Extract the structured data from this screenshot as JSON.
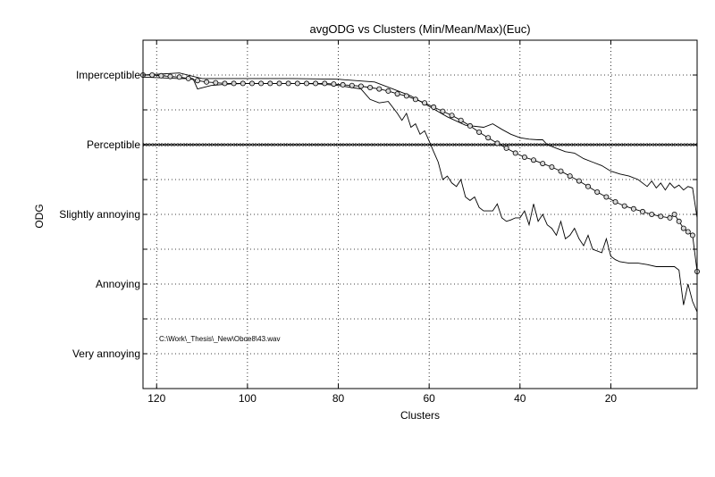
{
  "chart_data": {
    "type": "line",
    "title": "avgODG vs Clusters (Min/Mean/Max)(Euc)",
    "xlabel": "Clusters",
    "ylabel": "ODG",
    "xlim": [
      123,
      1
    ],
    "ylim": [
      -4.5,
      0.5
    ],
    "x_reversed": true,
    "grid": true,
    "xticks": [
      120,
      100,
      80,
      60,
      40,
      20
    ],
    "yticks": [
      {
        "value": 0,
        "label": "Imperceptible"
      },
      {
        "value": -1,
        "label": "Perceptible"
      },
      {
        "value": -2,
        "label": "Slightly annoying"
      },
      {
        "value": -3,
        "label": "Annoying"
      },
      {
        "value": -4,
        "label": "Very annoying"
      }
    ],
    "annotation": "C:\\Work\\_Thesis\\_New\\Oboe8\\43.wav",
    "threshold": {
      "y": -1,
      "style": "x-marker line"
    },
    "series": [
      {
        "role": "max",
        "points": [
          [
            123,
            0
          ],
          [
            115,
            0.03
          ],
          [
            110,
            -0.05
          ],
          [
            100,
            -0.05
          ],
          [
            90,
            -0.05
          ],
          [
            80,
            -0.06
          ],
          [
            72,
            -0.1
          ],
          [
            68,
            -0.2
          ],
          [
            64,
            -0.3
          ],
          [
            60,
            -0.45
          ],
          [
            56,
            -0.6
          ],
          [
            52,
            -0.72
          ],
          [
            48,
            -0.75
          ],
          [
            46,
            -0.7
          ],
          [
            44,
            -0.78
          ],
          [
            42,
            -0.85
          ],
          [
            40,
            -0.9
          ],
          [
            38,
            -0.92
          ],
          [
            36,
            -0.93
          ],
          [
            35,
            -0.93
          ],
          [
            34,
            -1.0
          ],
          [
            32,
            -1.05
          ],
          [
            30,
            -1.1
          ],
          [
            28,
            -1.12
          ],
          [
            26,
            -1.2
          ],
          [
            24,
            -1.25
          ],
          [
            22,
            -1.3
          ],
          [
            20,
            -1.38
          ],
          [
            18,
            -1.42
          ],
          [
            16,
            -1.45
          ],
          [
            14,
            -1.5
          ],
          [
            12,
            -1.6
          ],
          [
            11,
            -1.52
          ],
          [
            10,
            -1.62
          ],
          [
            9,
            -1.55
          ],
          [
            8,
            -1.65
          ],
          [
            7,
            -1.55
          ],
          [
            6,
            -1.62
          ],
          [
            5,
            -1.58
          ],
          [
            4,
            -1.65
          ],
          [
            3,
            -1.6
          ],
          [
            2,
            -1.62
          ],
          [
            1,
            -2.05
          ]
        ]
      },
      {
        "role": "min",
        "points": [
          [
            123,
            -0.03
          ],
          [
            115,
            -0.05
          ],
          [
            112,
            -0.05
          ],
          [
            111,
            -0.2
          ],
          [
            108,
            -0.15
          ],
          [
            104,
            -0.13
          ],
          [
            100,
            -0.12
          ],
          [
            96,
            -0.12
          ],
          [
            92,
            -0.12
          ],
          [
            88,
            -0.12
          ],
          [
            84,
            -0.13
          ],
          [
            80,
            -0.15
          ],
          [
            77,
            -0.18
          ],
          [
            75,
            -0.2
          ],
          [
            73,
            -0.35
          ],
          [
            71,
            -0.4
          ],
          [
            69,
            -0.38
          ],
          [
            67,
            -0.55
          ],
          [
            66,
            -0.65
          ],
          [
            65,
            -0.55
          ],
          [
            64,
            -0.75
          ],
          [
            63,
            -0.7
          ],
          [
            62,
            -0.85
          ],
          [
            61,
            -0.8
          ],
          [
            60,
            -0.95
          ],
          [
            59,
            -1.1
          ],
          [
            58,
            -1.25
          ],
          [
            57,
            -1.5
          ],
          [
            56,
            -1.45
          ],
          [
            55,
            -1.55
          ],
          [
            54,
            -1.6
          ],
          [
            53,
            -1.5
          ],
          [
            52,
            -1.75
          ],
          [
            51,
            -1.8
          ],
          [
            50,
            -1.75
          ],
          [
            49,
            -1.9
          ],
          [
            48,
            -1.95
          ],
          [
            46,
            -1.95
          ],
          [
            45,
            -1.85
          ],
          [
            44,
            -2.05
          ],
          [
            43,
            -2.1
          ],
          [
            42,
            -2.08
          ],
          [
            41,
            -2.05
          ],
          [
            40,
            -2.05
          ],
          [
            39,
            -1.95
          ],
          [
            38,
            -2.15
          ],
          [
            37,
            -1.85
          ],
          [
            36,
            -2.1
          ],
          [
            35,
            -2.0
          ],
          [
            34,
            -2.15
          ],
          [
            33,
            -2.2
          ],
          [
            32,
            -2.3
          ],
          [
            31,
            -2.1
          ],
          [
            30,
            -2.35
          ],
          [
            29,
            -2.3
          ],
          [
            28,
            -2.2
          ],
          [
            27,
            -2.35
          ],
          [
            26,
            -2.45
          ],
          [
            25,
            -2.3
          ],
          [
            24,
            -2.5
          ],
          [
            22,
            -2.55
          ],
          [
            21,
            -2.35
          ],
          [
            20,
            -2.6
          ],
          [
            19,
            -2.65
          ],
          [
            18,
            -2.68
          ],
          [
            16,
            -2.7
          ],
          [
            14,
            -2.7
          ],
          [
            12,
            -2.72
          ],
          [
            10,
            -2.75
          ],
          [
            8,
            -2.75
          ],
          [
            6,
            -2.75
          ],
          [
            5,
            -2.8
          ],
          [
            4,
            -3.3
          ],
          [
            3,
            -3.0
          ],
          [
            2,
            -3.25
          ],
          [
            1,
            -3.4
          ]
        ]
      },
      {
        "role": "mean",
        "markers": "circle",
        "points": [
          [
            123,
            0
          ],
          [
            121,
            0
          ],
          [
            119,
            -0.01
          ],
          [
            117,
            -0.02
          ],
          [
            115,
            -0.03
          ],
          [
            113,
            -0.05
          ],
          [
            111,
            -0.08
          ],
          [
            109,
            -0.1
          ],
          [
            107,
            -0.11
          ],
          [
            105,
            -0.12
          ],
          [
            103,
            -0.12
          ],
          [
            101,
            -0.12
          ],
          [
            99,
            -0.12
          ],
          [
            97,
            -0.12
          ],
          [
            95,
            -0.12
          ],
          [
            93,
            -0.12
          ],
          [
            91,
            -0.12
          ],
          [
            89,
            -0.12
          ],
          [
            87,
            -0.12
          ],
          [
            85,
            -0.12
          ],
          [
            83,
            -0.12
          ],
          [
            81,
            -0.13
          ],
          [
            79,
            -0.14
          ],
          [
            77,
            -0.15
          ],
          [
            75,
            -0.16
          ],
          [
            73,
            -0.18
          ],
          [
            71,
            -0.2
          ],
          [
            69,
            -0.23
          ],
          [
            67,
            -0.27
          ],
          [
            65,
            -0.3
          ],
          [
            63,
            -0.35
          ],
          [
            61,
            -0.4
          ],
          [
            59,
            -0.46
          ],
          [
            57,
            -0.52
          ],
          [
            55,
            -0.58
          ],
          [
            53,
            -0.65
          ],
          [
            51,
            -0.73
          ],
          [
            49,
            -0.82
          ],
          [
            47,
            -0.9
          ],
          [
            45,
            -0.98
          ],
          [
            43,
            -1.05
          ],
          [
            41,
            -1.12
          ],
          [
            39,
            -1.18
          ],
          [
            37,
            -1.22
          ],
          [
            35,
            -1.27
          ],
          [
            33,
            -1.32
          ],
          [
            31,
            -1.38
          ],
          [
            29,
            -1.45
          ],
          [
            27,
            -1.52
          ],
          [
            25,
            -1.6
          ],
          [
            23,
            -1.68
          ],
          [
            21,
            -1.75
          ],
          [
            19,
            -1.82
          ],
          [
            17,
            -1.88
          ],
          [
            15,
            -1.92
          ],
          [
            13,
            -1.96
          ],
          [
            11,
            -2.0
          ],
          [
            9,
            -2.03
          ],
          [
            7,
            -2.05
          ],
          [
            6,
            -2.0
          ],
          [
            5,
            -2.1
          ],
          [
            4,
            -2.2
          ],
          [
            3,
            -2.25
          ],
          [
            2,
            -2.3
          ],
          [
            1,
            -2.82
          ]
        ]
      }
    ]
  }
}
